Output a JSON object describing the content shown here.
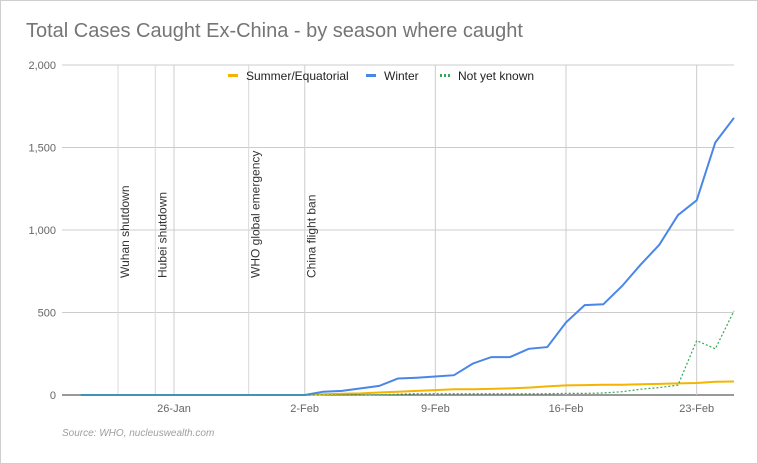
{
  "chart_data": {
    "type": "line",
    "title": "Total Cases Caught Ex-China - by season where caught",
    "source": "Source: WHO, nucleuswealth.com",
    "x": [
      "2020-01-21",
      "2020-01-22",
      "2020-01-23",
      "2020-01-24",
      "2020-01-25",
      "2020-01-26",
      "2020-01-27",
      "2020-01-28",
      "2020-01-29",
      "2020-01-30",
      "2020-01-31",
      "2020-02-01",
      "2020-02-02",
      "2020-02-03",
      "2020-02-04",
      "2020-02-05",
      "2020-02-06",
      "2020-02-07",
      "2020-02-08",
      "2020-02-09",
      "2020-02-10",
      "2020-02-11",
      "2020-02-12",
      "2020-02-13",
      "2020-02-14",
      "2020-02-15",
      "2020-02-16",
      "2020-02-17",
      "2020-02-18",
      "2020-02-19",
      "2020-02-20",
      "2020-02-21",
      "2020-02-22",
      "2020-02-23",
      "2020-02-24",
      "2020-02-25"
    ],
    "xlim": [
      "2020-01-20",
      "2020-02-25"
    ],
    "x_ticks": [
      {
        "date": "2020-01-26",
        "label": "26-Jan"
      },
      {
        "date": "2020-02-02",
        "label": "2-Feb"
      },
      {
        "date": "2020-02-09",
        "label": "9-Feb"
      },
      {
        "date": "2020-02-16",
        "label": "16-Feb"
      },
      {
        "date": "2020-02-23",
        "label": "23-Feb"
      }
    ],
    "ylim": [
      0,
      2000
    ],
    "y_ticks": [
      0,
      500,
      1000,
      1500,
      2000
    ],
    "y_tick_labels": [
      "0",
      "500",
      "1,000",
      "1,500",
      "2,000"
    ],
    "grid": true,
    "legend_position": "top-center",
    "series": [
      {
        "name": "Summer/Equatorial",
        "color": "#f4b400",
        "style": "solid",
        "values": [
          0,
          0,
          0,
          0,
          0,
          0,
          0,
          0,
          0,
          0,
          0,
          0,
          0,
          5,
          8,
          10,
          15,
          20,
          25,
          30,
          35,
          35,
          37,
          40,
          45,
          52,
          58,
          60,
          62,
          62,
          65,
          67,
          70,
          73,
          80,
          82
        ]
      },
      {
        "name": "Winter",
        "color": "#4a86e8",
        "style": "solid",
        "values": [
          0,
          0,
          0,
          0,
          0,
          0,
          0,
          0,
          0,
          0,
          0,
          0,
          0,
          20,
          25,
          40,
          55,
          100,
          105,
          112,
          120,
          190,
          230,
          230,
          280,
          290,
          440,
          545,
          550,
          660,
          790,
          910,
          1090,
          1180,
          1530,
          1680
        ]
      },
      {
        "name": "Not yet known",
        "color": "#34a853",
        "style": "dotted",
        "values": [
          0,
          0,
          0,
          0,
          0,
          0,
          0,
          0,
          0,
          0,
          0,
          0,
          0,
          0,
          0,
          0,
          2,
          5,
          8,
          8,
          8,
          8,
          8,
          8,
          8,
          8,
          10,
          10,
          12,
          20,
          35,
          45,
          60,
          330,
          280,
          510
        ]
      }
    ],
    "annotations": [
      {
        "date": "2020-01-23",
        "label": "Wuhan shutdown"
      },
      {
        "date": "2020-01-25",
        "label": "Hubei shutdown"
      },
      {
        "date": "2020-01-30",
        "label": "WHO global emergency"
      },
      {
        "date": "2020-02-02",
        "label": "China flight ban"
      }
    ]
  }
}
